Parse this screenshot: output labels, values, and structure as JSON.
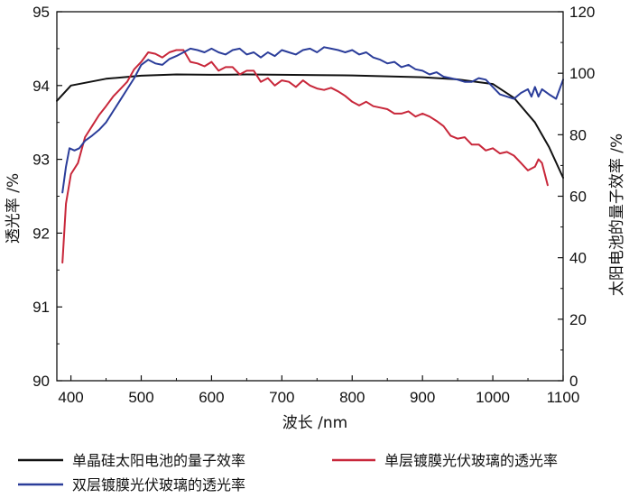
{
  "chart_data": {
    "type": "line",
    "title": "",
    "xlabel": "波长 /nm",
    "ylabel_left": "透光率 /%",
    "ylabel_right": "太阳电池的量子效率 /%",
    "xlim": [
      380,
      1100
    ],
    "ylim_left": [
      90,
      95
    ],
    "ylim_right": [
      0,
      120
    ],
    "x_ticks": [
      "400",
      "500",
      "600",
      "700",
      "800",
      "900",
      "1000",
      "1100"
    ],
    "y_ticks_left": [
      "90",
      "91",
      "92",
      "93",
      "94",
      "95"
    ],
    "y_ticks_right": [
      "0",
      "20",
      "40",
      "60",
      "80",
      "100",
      "120"
    ],
    "legend_position": "bottom",
    "series": [
      {
        "name": "单晶硅太阳电池的量子效率",
        "axis": "right",
        "color": "#111111",
        "points": [
          [
            380,
            91.0
          ],
          [
            400,
            96.0
          ],
          [
            450,
            98.2
          ],
          [
            500,
            99.2
          ],
          [
            550,
            99.6
          ],
          [
            600,
            99.5
          ],
          [
            650,
            99.6
          ],
          [
            700,
            99.5
          ],
          [
            750,
            99.4
          ],
          [
            800,
            99.3
          ],
          [
            850,
            99.0
          ],
          [
            900,
            98.7
          ],
          [
            950,
            98.0
          ],
          [
            1000,
            96.5
          ],
          [
            1030,
            92.0
          ],
          [
            1060,
            84.0
          ],
          [
            1080,
            76.0
          ],
          [
            1100,
            66.0
          ]
        ]
      },
      {
        "name": "单层镀膜光伏玻璃的透光率",
        "axis": "left",
        "color": "#c8273a",
        "points": [
          [
            388,
            91.6
          ],
          [
            393,
            92.4
          ],
          [
            400,
            92.8
          ],
          [
            410,
            92.95
          ],
          [
            420,
            93.3
          ],
          [
            430,
            93.45
          ],
          [
            440,
            93.6
          ],
          [
            450,
            93.72
          ],
          [
            460,
            93.85
          ],
          [
            470,
            93.95
          ],
          [
            480,
            94.05
          ],
          [
            490,
            94.22
          ],
          [
            500,
            94.32
          ],
          [
            510,
            94.45
          ],
          [
            520,
            94.43
          ],
          [
            530,
            94.38
          ],
          [
            540,
            94.45
          ],
          [
            550,
            94.48
          ],
          [
            560,
            94.48
          ],
          [
            570,
            94.32
          ],
          [
            580,
            94.3
          ],
          [
            590,
            94.26
          ],
          [
            600,
            94.32
          ],
          [
            610,
            94.2
          ],
          [
            620,
            94.25
          ],
          [
            630,
            94.25
          ],
          [
            640,
            94.15
          ],
          [
            650,
            94.2
          ],
          [
            660,
            94.2
          ],
          [
            670,
            94.05
          ],
          [
            680,
            94.1
          ],
          [
            690,
            94.0
          ],
          [
            700,
            94.07
          ],
          [
            710,
            94.05
          ],
          [
            720,
            93.98
          ],
          [
            730,
            94.07
          ],
          [
            740,
            94.0
          ],
          [
            750,
            93.96
          ],
          [
            760,
            93.94
          ],
          [
            770,
            93.97
          ],
          [
            780,
            93.92
          ],
          [
            790,
            93.86
          ],
          [
            800,
            93.78
          ],
          [
            810,
            93.73
          ],
          [
            820,
            93.78
          ],
          [
            830,
            93.72
          ],
          [
            840,
            93.7
          ],
          [
            850,
            93.68
          ],
          [
            860,
            93.62
          ],
          [
            870,
            93.62
          ],
          [
            880,
            93.65
          ],
          [
            890,
            93.58
          ],
          [
            900,
            93.62
          ],
          [
            910,
            93.58
          ],
          [
            920,
            93.52
          ],
          [
            930,
            93.45
          ],
          [
            940,
            93.32
          ],
          [
            950,
            93.28
          ],
          [
            960,
            93.3
          ],
          [
            970,
            93.2
          ],
          [
            980,
            93.2
          ],
          [
            990,
            93.12
          ],
          [
            1000,
            93.15
          ],
          [
            1010,
            93.08
          ],
          [
            1020,
            93.1
          ],
          [
            1030,
            93.05
          ],
          [
            1040,
            92.95
          ],
          [
            1050,
            92.85
          ],
          [
            1060,
            92.9
          ],
          [
            1065,
            93.0
          ],
          [
            1070,
            92.95
          ],
          [
            1078,
            92.65
          ]
        ]
      },
      {
        "name": "双层镀膜光伏玻璃的透光率",
        "axis": "left",
        "color": "#2b3d9a",
        "points": [
          [
            388,
            92.55
          ],
          [
            393,
            92.9
          ],
          [
            398,
            93.15
          ],
          [
            405,
            93.12
          ],
          [
            412,
            93.15
          ],
          [
            420,
            93.25
          ],
          [
            430,
            93.32
          ],
          [
            440,
            93.4
          ],
          [
            450,
            93.5
          ],
          [
            460,
            93.65
          ],
          [
            470,
            93.8
          ],
          [
            480,
            93.95
          ],
          [
            490,
            94.1
          ],
          [
            500,
            94.28
          ],
          [
            510,
            94.35
          ],
          [
            520,
            94.3
          ],
          [
            530,
            94.28
          ],
          [
            540,
            94.36
          ],
          [
            550,
            94.4
          ],
          [
            560,
            94.45
          ],
          [
            570,
            94.5
          ],
          [
            580,
            94.48
          ],
          [
            590,
            94.45
          ],
          [
            600,
            94.5
          ],
          [
            610,
            94.45
          ],
          [
            620,
            94.42
          ],
          [
            630,
            94.48
          ],
          [
            640,
            94.5
          ],
          [
            650,
            94.42
          ],
          [
            660,
            94.45
          ],
          [
            670,
            94.38
          ],
          [
            680,
            94.45
          ],
          [
            690,
            94.4
          ],
          [
            700,
            94.48
          ],
          [
            710,
            94.45
          ],
          [
            720,
            94.42
          ],
          [
            730,
            94.48
          ],
          [
            740,
            94.5
          ],
          [
            750,
            94.45
          ],
          [
            760,
            94.52
          ],
          [
            770,
            94.5
          ],
          [
            780,
            94.48
          ],
          [
            790,
            94.45
          ],
          [
            800,
            94.48
          ],
          [
            810,
            94.42
          ],
          [
            820,
            94.45
          ],
          [
            830,
            94.38
          ],
          [
            840,
            94.35
          ],
          [
            850,
            94.3
          ],
          [
            860,
            94.32
          ],
          [
            870,
            94.25
          ],
          [
            880,
            94.28
          ],
          [
            890,
            94.22
          ],
          [
            900,
            94.2
          ],
          [
            910,
            94.15
          ],
          [
            920,
            94.18
          ],
          [
            930,
            94.12
          ],
          [
            940,
            94.1
          ],
          [
            950,
            94.08
          ],
          [
            960,
            94.05
          ],
          [
            970,
            94.05
          ],
          [
            980,
            94.1
          ],
          [
            990,
            94.08
          ],
          [
            1000,
            93.98
          ],
          [
            1010,
            93.88
          ],
          [
            1020,
            93.85
          ],
          [
            1030,
            93.82
          ],
          [
            1040,
            93.9
          ],
          [
            1050,
            93.95
          ],
          [
            1055,
            93.85
          ],
          [
            1060,
            93.98
          ],
          [
            1065,
            93.85
          ],
          [
            1070,
            93.95
          ],
          [
            1080,
            93.88
          ],
          [
            1090,
            93.82
          ],
          [
            1100,
            94.08
          ]
        ]
      }
    ]
  }
}
